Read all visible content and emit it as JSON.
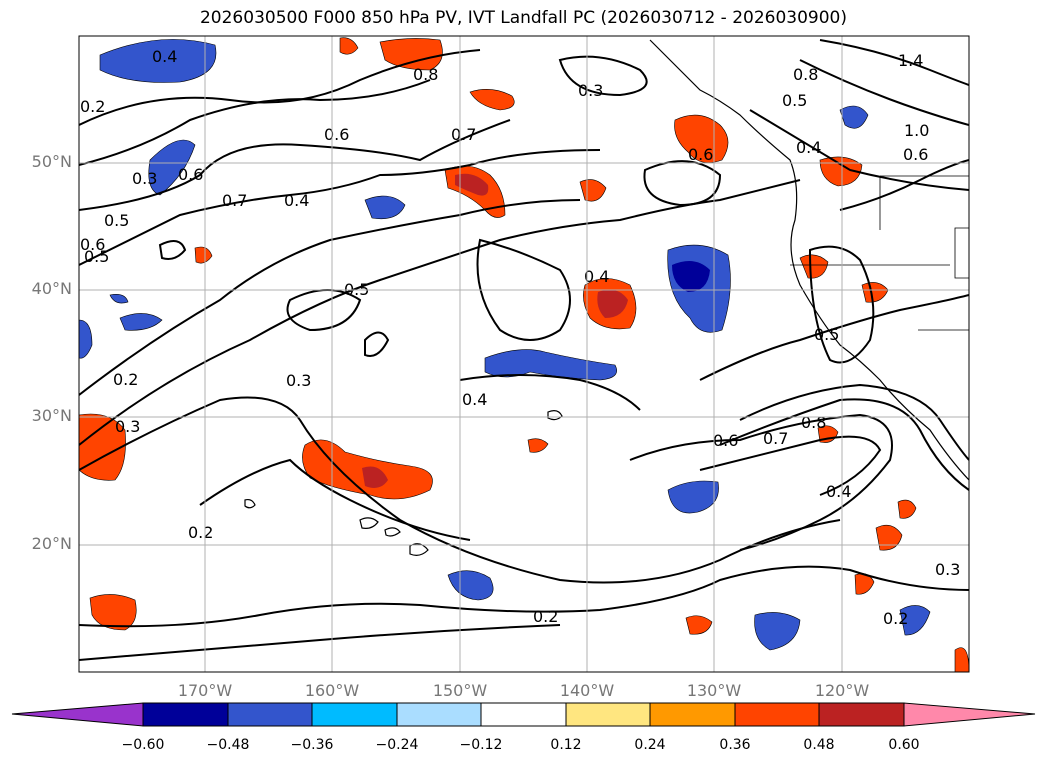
{
  "title": "2026030500 F000 850 hPa PV, IVT Landfall PC (2026030712 - 2026030900)",
  "lat_labels": [
    "50°N",
    "40°N",
    "30°N",
    "20°N"
  ],
  "lon_labels": [
    "170°W",
    "160°W",
    "150°W",
    "140°W",
    "130°W",
    "120°W"
  ],
  "contour_labels": [
    "0.4",
    "0.8",
    "1.4",
    "0.3",
    "0.8",
    "0.5",
    "0.2",
    "0.6",
    "0.7",
    "0.3",
    "0.6",
    "0.5",
    "0.4",
    "1.0",
    "0.6",
    "0.6",
    "0.7",
    "0.4",
    "0.5",
    "0.6",
    "0.5",
    "0.4",
    "0.5",
    "0.2",
    "0.3",
    "0.3",
    "0.4",
    "0.6",
    "0.7",
    "0.8",
    "0.4",
    "0.2",
    "0.2",
    "0.2",
    "0.3"
  ],
  "colorbar": {
    "ticks": [
      "−0.60",
      "−0.48",
      "−0.36",
      "−0.24",
      "−0.12",
      "0.12",
      "0.24",
      "0.36",
      "0.48",
      "0.60"
    ],
    "colors": [
      "#9933cc",
      "#000099",
      "#3355cc",
      "#00bbff",
      "#aaddff",
      "#ffffff",
      "#ffe680",
      "#ff9900",
      "#ff4400",
      "#bb2222",
      "#ff88aa"
    ]
  },
  "chart_data": {
    "type": "heatmap",
    "title": "2026030500 F000 850 hPa PV, IVT Landfall PC (2026030712 - 2026030900)",
    "lat_range": [
      "10°N",
      "60°N"
    ],
    "lon_range": [
      "180°",
      "110°W"
    ],
    "contour_levels": [
      0.2,
      0.3,
      0.4,
      0.5,
      0.6,
      0.7,
      0.8,
      1.0,
      1.4
    ],
    "color_levels": [
      -0.6,
      -0.48,
      -0.36,
      -0.24,
      -0.12,
      0.12,
      0.24,
      0.36,
      0.48,
      0.6
    ],
    "colorbar_extend": "both",
    "grid": true
  }
}
